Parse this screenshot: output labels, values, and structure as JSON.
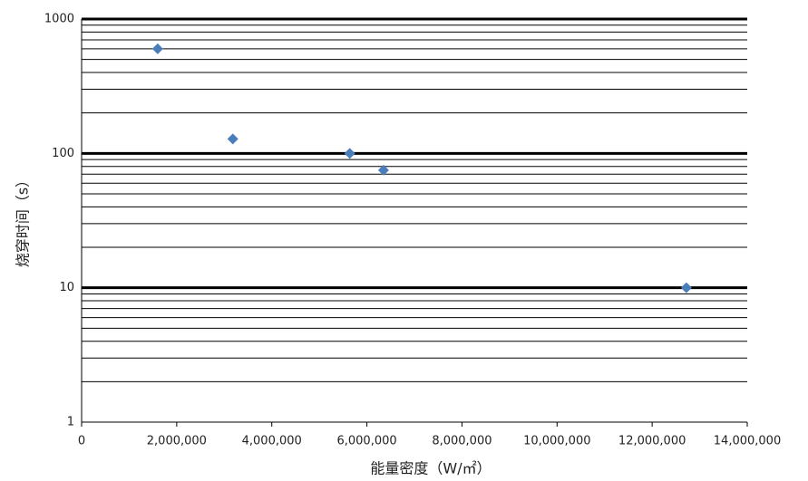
{
  "chart_data": {
    "type": "scatter",
    "xlabel": "能量密度（W/㎡）",
    "ylabel": "烧穿时间（s）",
    "x": [
      1600000,
      3180000,
      5640000,
      6350000,
      12720000
    ],
    "values": [
      600,
      128,
      100,
      75,
      10
    ],
    "color": "#4a7ebb",
    "xlim": [
      0,
      14000000
    ],
    "xticks": [
      0,
      {
        "value": 2000000,
        "label": "2,000,000"
      },
      {
        "value": 4000000,
        "label": "4,000,000"
      },
      {
        "value": 6000000,
        "label": "6,000,000"
      },
      {
        "value": 8000000,
        "label": "8,000,000"
      },
      {
        "value": 10000000,
        "label": "10,000,000"
      },
      {
        "value": 12000000,
        "label": "12,000,000"
      },
      {
        "value": 14000000,
        "label": "14,000,000"
      }
    ],
    "ylim": [
      1,
      1000
    ],
    "yticks": [
      1,
      10,
      100,
      1000
    ],
    "minor_yticks": [
      2,
      3,
      4,
      5,
      6,
      7,
      8,
      9,
      20,
      30,
      40,
      50,
      60,
      70,
      80,
      90,
      200,
      300,
      400,
      500,
      600,
      700,
      800,
      900
    ],
    "ylog": true,
    "grid": true
  }
}
